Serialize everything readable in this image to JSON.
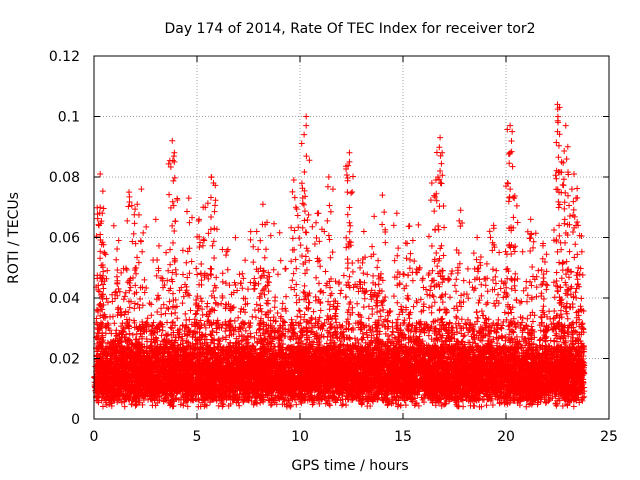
{
  "chart_data": {
    "type": "scatter",
    "title": "Day 174 of 2014, Rate Of TEC Index for receiver tor2",
    "xlabel": "GPS time / hours",
    "ylabel": "ROTI / TECUs",
    "xlim": [
      0,
      25
    ],
    "ylim": [
      0,
      0.12
    ],
    "grid": true,
    "x_ticks": [
      0,
      5,
      10,
      15,
      20,
      25
    ],
    "x_tick_labels": [
      "0",
      "5",
      "10",
      "15",
      "20",
      "25"
    ],
    "y_ticks": [
      0,
      0.02,
      0.04,
      0.06,
      0.08,
      0.1,
      0.12
    ],
    "y_tick_labels": [
      "0",
      "0.02",
      "0.04",
      "0.06",
      "0.08",
      "0.1",
      "0.12"
    ],
    "marker": "+",
    "marker_color": "#ff0000",
    "x_data_range": [
      0,
      23.8
    ],
    "series": [
      {
        "name": "ROTI",
        "note": "dense scatter; baseline ~0.005-0.025, representative excursions listed",
        "points": [
          [
            0.3,
            0.081
          ],
          [
            0.3,
            0.07
          ],
          [
            0.4,
            0.068
          ],
          [
            0.3,
            0.061
          ],
          [
            0.5,
            0.055
          ],
          [
            1.2,
            0.059
          ],
          [
            1.7,
            0.075
          ],
          [
            2.1,
            0.071
          ],
          [
            2.3,
            0.076
          ],
          [
            3.0,
            0.066
          ],
          [
            3.5,
            0.055
          ],
          [
            3.8,
            0.092
          ],
          [
            3.9,
            0.088
          ],
          [
            3.9,
            0.085
          ],
          [
            4.6,
            0.073
          ],
          [
            5.1,
            0.066
          ],
          [
            5.3,
            0.07
          ],
          [
            5.7,
            0.08
          ],
          [
            5.8,
            0.078
          ],
          [
            6.5,
            0.056
          ],
          [
            7.2,
            0.048
          ],
          [
            7.9,
            0.062
          ],
          [
            8.2,
            0.071
          ],
          [
            8.4,
            0.065
          ],
          [
            9.7,
            0.079
          ],
          [
            9.8,
            0.07
          ],
          [
            10.3,
            0.1
          ],
          [
            10.3,
            0.097
          ],
          [
            10.2,
            0.094
          ],
          [
            10.9,
            0.068
          ],
          [
            11.4,
            0.08
          ],
          [
            11.6,
            0.076
          ],
          [
            12.4,
            0.088
          ],
          [
            12.4,
            0.085
          ],
          [
            12.3,
            0.075
          ],
          [
            13.1,
            0.062
          ],
          [
            13.6,
            0.067
          ],
          [
            14.0,
            0.074
          ],
          [
            14.7,
            0.068
          ],
          [
            15.2,
            0.058
          ],
          [
            15.8,
            0.05
          ],
          [
            16.4,
            0.078
          ],
          [
            16.6,
            0.079
          ],
          [
            16.8,
            0.093
          ],
          [
            16.9,
            0.088
          ],
          [
            16.8,
            0.082
          ],
          [
            17.8,
            0.069
          ],
          [
            18.6,
            0.06
          ],
          [
            19.4,
            0.064
          ],
          [
            20.0,
            0.077
          ],
          [
            20.2,
            0.097
          ],
          [
            20.3,
            0.095
          ],
          [
            20.2,
            0.088
          ],
          [
            20.4,
            0.073
          ],
          [
            21.2,
            0.066
          ],
          [
            21.8,
            0.058
          ],
          [
            22.5,
            0.104
          ],
          [
            22.6,
            0.103
          ],
          [
            22.5,
            0.095
          ],
          [
            22.7,
            0.085
          ],
          [
            22.9,
            0.097
          ],
          [
            23.0,
            0.09
          ],
          [
            23.3,
            0.081
          ],
          [
            23.4,
            0.073
          ],
          [
            23.5,
            0.064
          ]
        ]
      }
    ]
  }
}
